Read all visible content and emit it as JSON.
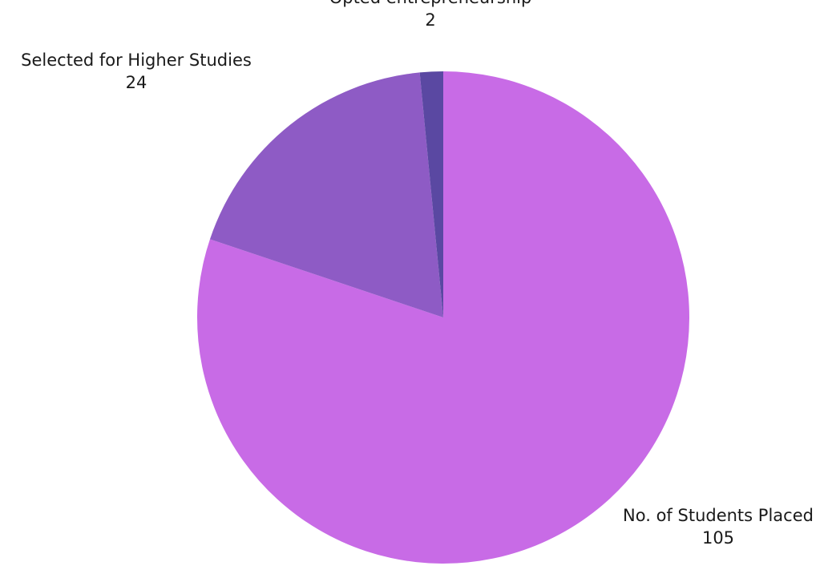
{
  "chart_data": {
    "type": "pie",
    "title": "",
    "categories": [
      "No. of Students Placed",
      "Selected for Higher Studies",
      "Opted entrepreneurship"
    ],
    "values": [
      105,
      24,
      2
    ],
    "colors": [
      "#c86be6",
      "#8e5bc5",
      "#5a48a2"
    ],
    "start_angle": "12 o'clock",
    "direction": "clockwise",
    "legend": "none",
    "data_labels": "outside, category name with value"
  }
}
